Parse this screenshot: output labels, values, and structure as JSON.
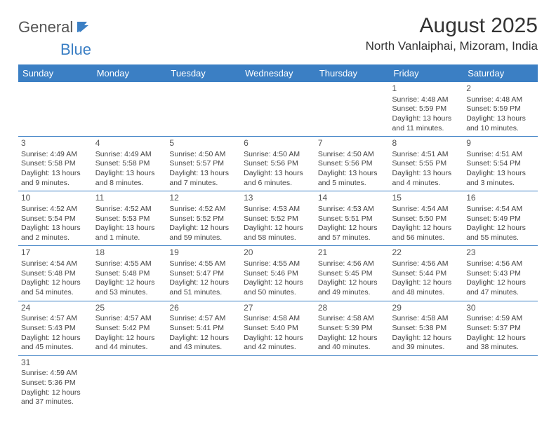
{
  "logo": {
    "text_general": "General",
    "text_blue": "Blue"
  },
  "title": "August 2025",
  "location": "North Vanlaiphai, Mizoram, India",
  "colors": {
    "header_bg": "#3b7fc4",
    "header_fg": "#ffffff",
    "text": "#444444",
    "rule": "#3b7fc4",
    "logo_gray": "#555555",
    "logo_blue": "#3b7fc4"
  },
  "day_headers": [
    "Sunday",
    "Monday",
    "Tuesday",
    "Wednesday",
    "Thursday",
    "Friday",
    "Saturday"
  ],
  "weeks": [
    [
      null,
      null,
      null,
      null,
      null,
      {
        "n": "1",
        "sunrise": "Sunrise: 4:48 AM",
        "sunset": "Sunset: 5:59 PM",
        "daylight": "Daylight: 13 hours and 11 minutes."
      },
      {
        "n": "2",
        "sunrise": "Sunrise: 4:48 AM",
        "sunset": "Sunset: 5:59 PM",
        "daylight": "Daylight: 13 hours and 10 minutes."
      }
    ],
    [
      {
        "n": "3",
        "sunrise": "Sunrise: 4:49 AM",
        "sunset": "Sunset: 5:58 PM",
        "daylight": "Daylight: 13 hours and 9 minutes."
      },
      {
        "n": "4",
        "sunrise": "Sunrise: 4:49 AM",
        "sunset": "Sunset: 5:58 PM",
        "daylight": "Daylight: 13 hours and 8 minutes."
      },
      {
        "n": "5",
        "sunrise": "Sunrise: 4:50 AM",
        "sunset": "Sunset: 5:57 PM",
        "daylight": "Daylight: 13 hours and 7 minutes."
      },
      {
        "n": "6",
        "sunrise": "Sunrise: 4:50 AM",
        "sunset": "Sunset: 5:56 PM",
        "daylight": "Daylight: 13 hours and 6 minutes."
      },
      {
        "n": "7",
        "sunrise": "Sunrise: 4:50 AM",
        "sunset": "Sunset: 5:56 PM",
        "daylight": "Daylight: 13 hours and 5 minutes."
      },
      {
        "n": "8",
        "sunrise": "Sunrise: 4:51 AM",
        "sunset": "Sunset: 5:55 PM",
        "daylight": "Daylight: 13 hours and 4 minutes."
      },
      {
        "n": "9",
        "sunrise": "Sunrise: 4:51 AM",
        "sunset": "Sunset: 5:54 PM",
        "daylight": "Daylight: 13 hours and 3 minutes."
      }
    ],
    [
      {
        "n": "10",
        "sunrise": "Sunrise: 4:52 AM",
        "sunset": "Sunset: 5:54 PM",
        "daylight": "Daylight: 13 hours and 2 minutes."
      },
      {
        "n": "11",
        "sunrise": "Sunrise: 4:52 AM",
        "sunset": "Sunset: 5:53 PM",
        "daylight": "Daylight: 13 hours and 1 minute."
      },
      {
        "n": "12",
        "sunrise": "Sunrise: 4:52 AM",
        "sunset": "Sunset: 5:52 PM",
        "daylight": "Daylight: 12 hours and 59 minutes."
      },
      {
        "n": "13",
        "sunrise": "Sunrise: 4:53 AM",
        "sunset": "Sunset: 5:52 PM",
        "daylight": "Daylight: 12 hours and 58 minutes."
      },
      {
        "n": "14",
        "sunrise": "Sunrise: 4:53 AM",
        "sunset": "Sunset: 5:51 PM",
        "daylight": "Daylight: 12 hours and 57 minutes."
      },
      {
        "n": "15",
        "sunrise": "Sunrise: 4:54 AM",
        "sunset": "Sunset: 5:50 PM",
        "daylight": "Daylight: 12 hours and 56 minutes."
      },
      {
        "n": "16",
        "sunrise": "Sunrise: 4:54 AM",
        "sunset": "Sunset: 5:49 PM",
        "daylight": "Daylight: 12 hours and 55 minutes."
      }
    ],
    [
      {
        "n": "17",
        "sunrise": "Sunrise: 4:54 AM",
        "sunset": "Sunset: 5:48 PM",
        "daylight": "Daylight: 12 hours and 54 minutes."
      },
      {
        "n": "18",
        "sunrise": "Sunrise: 4:55 AM",
        "sunset": "Sunset: 5:48 PM",
        "daylight": "Daylight: 12 hours and 53 minutes."
      },
      {
        "n": "19",
        "sunrise": "Sunrise: 4:55 AM",
        "sunset": "Sunset: 5:47 PM",
        "daylight": "Daylight: 12 hours and 51 minutes."
      },
      {
        "n": "20",
        "sunrise": "Sunrise: 4:55 AM",
        "sunset": "Sunset: 5:46 PM",
        "daylight": "Daylight: 12 hours and 50 minutes."
      },
      {
        "n": "21",
        "sunrise": "Sunrise: 4:56 AM",
        "sunset": "Sunset: 5:45 PM",
        "daylight": "Daylight: 12 hours and 49 minutes."
      },
      {
        "n": "22",
        "sunrise": "Sunrise: 4:56 AM",
        "sunset": "Sunset: 5:44 PM",
        "daylight": "Daylight: 12 hours and 48 minutes."
      },
      {
        "n": "23",
        "sunrise": "Sunrise: 4:56 AM",
        "sunset": "Sunset: 5:43 PM",
        "daylight": "Daylight: 12 hours and 47 minutes."
      }
    ],
    [
      {
        "n": "24",
        "sunrise": "Sunrise: 4:57 AM",
        "sunset": "Sunset: 5:43 PM",
        "daylight": "Daylight: 12 hours and 45 minutes."
      },
      {
        "n": "25",
        "sunrise": "Sunrise: 4:57 AM",
        "sunset": "Sunset: 5:42 PM",
        "daylight": "Daylight: 12 hours and 44 minutes."
      },
      {
        "n": "26",
        "sunrise": "Sunrise: 4:57 AM",
        "sunset": "Sunset: 5:41 PM",
        "daylight": "Daylight: 12 hours and 43 minutes."
      },
      {
        "n": "27",
        "sunrise": "Sunrise: 4:58 AM",
        "sunset": "Sunset: 5:40 PM",
        "daylight": "Daylight: 12 hours and 42 minutes."
      },
      {
        "n": "28",
        "sunrise": "Sunrise: 4:58 AM",
        "sunset": "Sunset: 5:39 PM",
        "daylight": "Daylight: 12 hours and 40 minutes."
      },
      {
        "n": "29",
        "sunrise": "Sunrise: 4:58 AM",
        "sunset": "Sunset: 5:38 PM",
        "daylight": "Daylight: 12 hours and 39 minutes."
      },
      {
        "n": "30",
        "sunrise": "Sunrise: 4:59 AM",
        "sunset": "Sunset: 5:37 PM",
        "daylight": "Daylight: 12 hours and 38 minutes."
      }
    ],
    [
      {
        "n": "31",
        "sunrise": "Sunrise: 4:59 AM",
        "sunset": "Sunset: 5:36 PM",
        "daylight": "Daylight: 12 hours and 37 minutes."
      },
      null,
      null,
      null,
      null,
      null,
      null
    ]
  ]
}
